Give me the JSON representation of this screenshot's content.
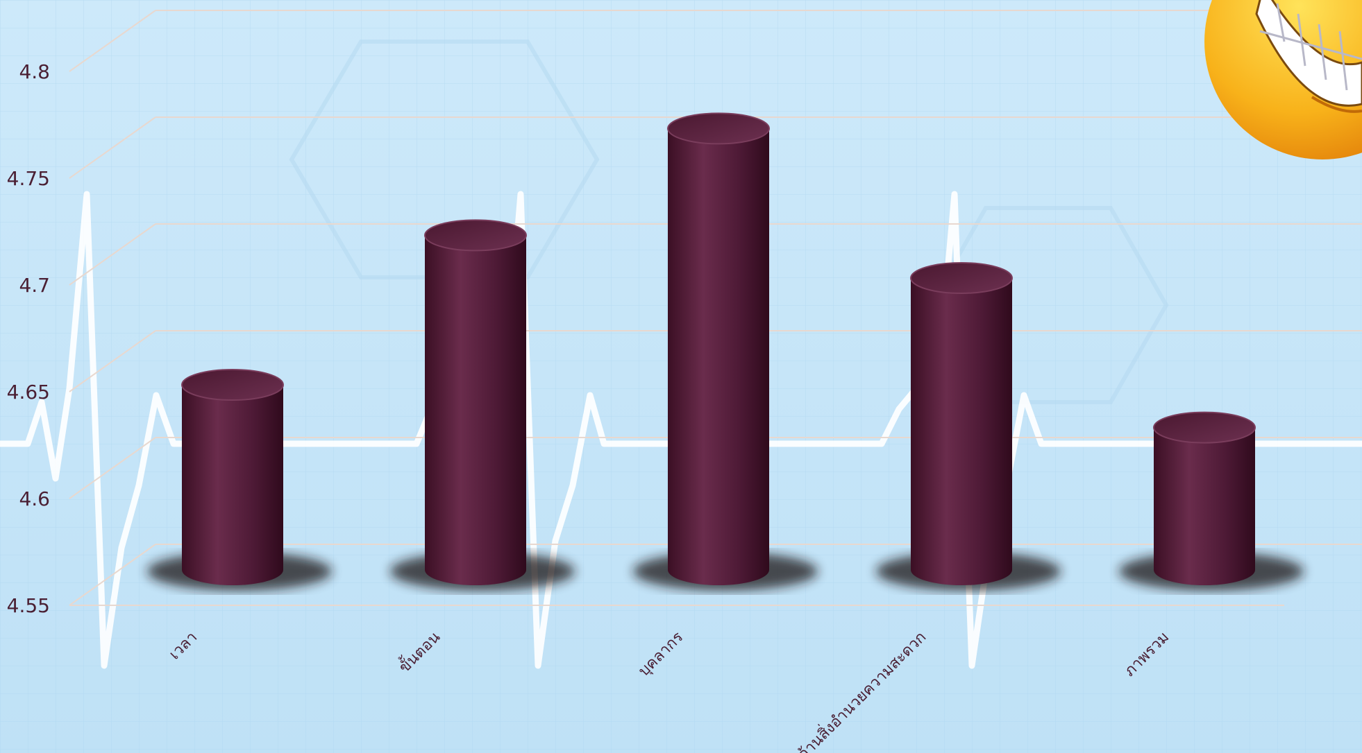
{
  "chart_data": {
    "type": "bar",
    "categories": [
      "เวลา",
      "ขั้นตอน",
      "บุคลากร",
      "ด้านสิ่งอำนวยความสะดวก",
      "ภาพรวม"
    ],
    "values": [
      4.65,
      4.72,
      4.77,
      4.7,
      4.63
    ],
    "title": "",
    "xlabel": "",
    "ylabel": "",
    "ylim": [
      4.55,
      4.8
    ],
    "yticks": [
      "4.55",
      "4.6",
      "4.65",
      "4.7",
      "4.75",
      "4.8"
    ],
    "grid": true,
    "legend": "none",
    "bar_style": "3d-cylinder",
    "colors": {
      "bar": "#5a2340",
      "background": "#c8e6f8",
      "text": "#4a1f33"
    }
  },
  "decorations": {
    "corner_icon": "smiley-face-icon",
    "background_pattern": "ekg-heartbeat-line"
  }
}
